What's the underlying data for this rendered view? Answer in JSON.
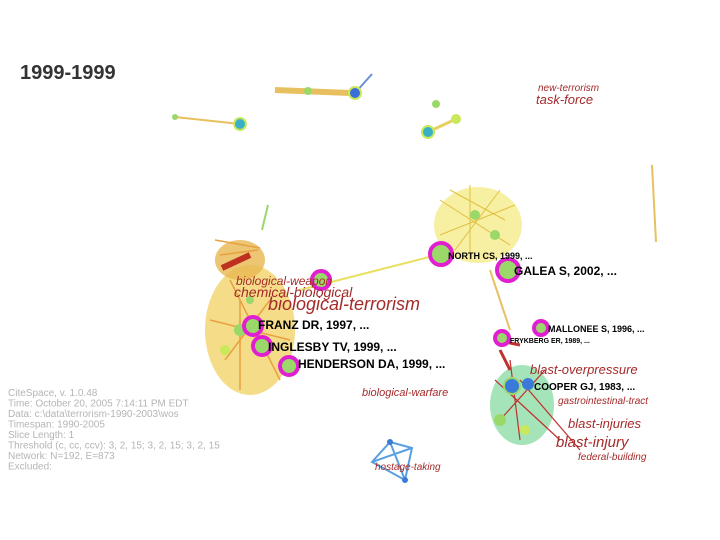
{
  "title": "1999-1999",
  "cluster_labels": [
    "new-terrorism",
    "task-force",
    "biological-weapon",
    "chemical-biological",
    "biological-terrorism",
    "biological-warfare",
    "blast-overpressure",
    "gastrointestinal-tract",
    "blast-injuries",
    "blast-injury",
    "federal-building",
    "hostage-taking"
  ],
  "node_labels": [
    "NORTH CS, 1999, ...",
    "GALEA S, 2002, ...",
    "FRANZ DR, 1997, ...",
    "INGLESBY TV, 1999, ...",
    "HENDERSON DA, 1999, ...",
    "MALLONEE S, 1996, ...",
    "FRYKBERG ER, 1989, ...",
    "COOPER GJ, 1983, ..."
  ],
  "info": [
    "CiteSpace, v. 1.0.48",
    "Time: October 20, 2005 7:14:11 PM EDT",
    "Data: c:\\data\\terrorism-1990-2003\\wos",
    "Timespan: 1990-2005",
    "Slice Length: 1",
    "Threshold (c, cc, ccv): 3, 2, 15; 3, 2, 15; 3, 2, 15",
    "Network: N=192, E=873",
    "Excluded:"
  ]
}
